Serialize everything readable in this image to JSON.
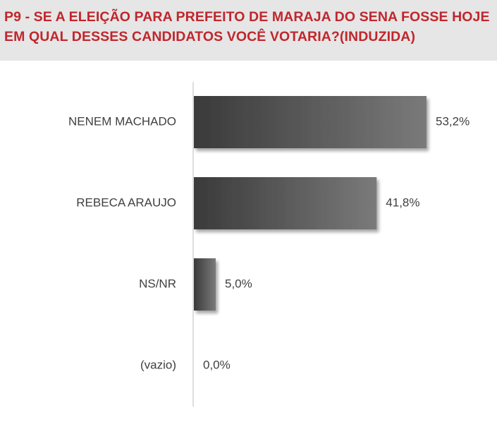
{
  "header": {
    "title": "P9 - SE A ELEIÇÃO PARA PREFEITO DE MARAJA DO SENA FOSSE HOJE EM QUAL DESSES CANDIDATOS VOCÊ VOTARIA?(INDUZIDA)"
  },
  "colors": {
    "title": "#c0262c",
    "header_bg": "#e6e6e6",
    "bar_dark": "#3a3a3a",
    "bar_light": "#7a7a7a",
    "axis": "#c8c8c8",
    "label": "#404040"
  },
  "chart_data": {
    "type": "bar",
    "orientation": "horizontal",
    "categories": [
      "NENEM MACHADO",
      "REBECA ARAUJO",
      "NS/NR",
      "(vazio)"
    ],
    "values": [
      53.2,
      41.8,
      5.0,
      0.0
    ],
    "value_labels": [
      "53,2%",
      "41,8%",
      "5,0%",
      "0,0%"
    ],
    "title": "P9 - SE A ELEIÇÃO PARA PREFEITO DE MARAJA DO SENA FOSSE HOJE EM QUAL DESSES CANDIDATOS VOCÊ VOTARIA?(INDUZIDA)",
    "xlabel": "",
    "ylabel": "",
    "xlim": [
      0,
      60
    ],
    "grid": false,
    "legend": "none"
  }
}
